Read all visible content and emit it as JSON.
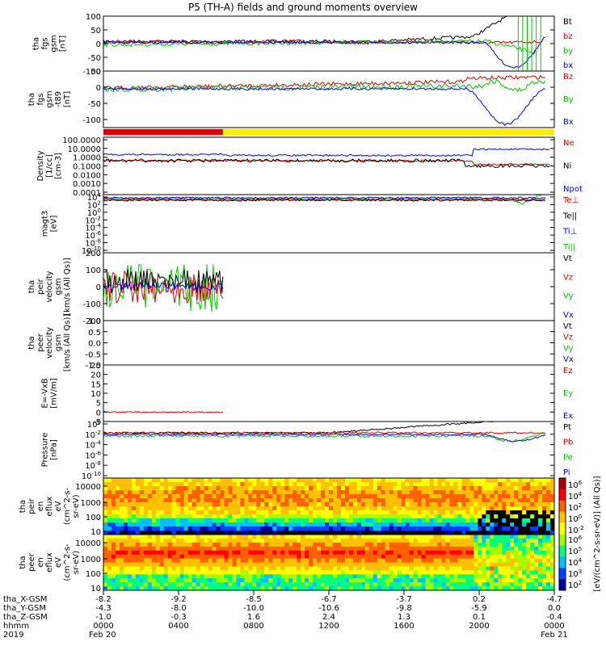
{
  "title": "P5 (TH-A) fields and ground moments overview",
  "colors": {
    "black": "#000000",
    "red": "#e00000",
    "green": "#00c800",
    "blue": "#0000ff",
    "yellow": "#ffee00",
    "bar_red": "#e00000"
  },
  "chart_data": [
    {
      "type": "line",
      "id": "fgs",
      "ylabel": [
        "tha",
        "fgs",
        "gsm",
        "[nT]"
      ],
      "ylim": [
        -100,
        100
      ],
      "yticks": [
        "100",
        "50",
        "0",
        "-50",
        "-100"
      ],
      "legend": [
        {
          "name": "Bt",
          "color": "black"
        },
        {
          "name": "bz",
          "color": "red"
        },
        {
          "name": "by",
          "color": "green"
        },
        {
          "name": "bx",
          "color": "blue"
        }
      ]
    },
    {
      "type": "line",
      "id": "fgs_t89",
      "ylabel": [
        "tha",
        "fgs",
        "gsm",
        "-t89",
        "[nT]"
      ],
      "ylim": [
        -125,
        50
      ],
      "yticks": [
        "50",
        "0",
        "-50",
        "-100"
      ],
      "legend": [
        {
          "name": "Bz",
          "color": "red"
        },
        {
          "name": "By",
          "color": "green"
        },
        {
          "name": "Bx",
          "color": "blue"
        }
      ]
    },
    {
      "type": "line",
      "id": "density",
      "ylabel": [
        "Density",
        "[1/cc]",
        "[cm-3]"
      ],
      "log": true,
      "ylim": [
        0.0001,
        100
      ],
      "yticks": [
        "100.0000",
        "10.0000",
        "1.0000",
        "0.1000",
        "0.0100",
        "0.0010",
        "0.0001"
      ],
      "legend": [
        {
          "name": "Ne",
          "color": "red"
        },
        {
          "name": "Ni",
          "color": "black"
        },
        {
          "name": "Npot",
          "color": "blue"
        }
      ]
    },
    {
      "type": "line",
      "id": "temp",
      "ylabel": [
        "magt3",
        "[eV]"
      ],
      "log": true,
      "yticks": [
        {
          "b": "10",
          "e": "4"
        },
        {
          "b": "10",
          "e": "2"
        },
        {
          "b": "10",
          "e": "0"
        },
        {
          "b": "10",
          "e": "-2"
        },
        {
          "b": "10",
          "e": "-4"
        },
        {
          "b": "10",
          "e": "-6"
        },
        {
          "b": "10",
          "e": "-8"
        },
        {
          "b": "10",
          "e": "-10"
        }
      ],
      "legend": [
        {
          "name": "Te⊥",
          "color": "red"
        },
        {
          "name": "Te||",
          "color": "black"
        },
        {
          "name": "Ti⊥",
          "color": "blue"
        },
        {
          "name": "Ti||",
          "color": "green"
        }
      ]
    },
    {
      "type": "line",
      "id": "peir_vel",
      "ylabel": [
        "tha",
        "peir",
        "velocity",
        "gsm",
        "[km/s (All Qs)]"
      ],
      "ylim": [
        -200,
        200
      ],
      "yticks": [
        "200",
        "100",
        "0",
        "-100",
        "-200"
      ],
      "legend": [
        {
          "name": "Vt",
          "color": "black"
        },
        {
          "name": "Vz",
          "color": "red"
        },
        {
          "name": "Vy",
          "color": "green"
        },
        {
          "name": "Vx",
          "color": "blue"
        }
      ]
    },
    {
      "type": "line",
      "id": "peer_vel",
      "ylabel": [
        "tha",
        "peer",
        "velocity",
        "gsm",
        "[km/s (All Qs)]"
      ],
      "ylim": [
        -1.0,
        1.0
      ],
      "yticks": [
        "1.0",
        "0.5",
        "0.0",
        "-0.5",
        "-1.0"
      ],
      "legend": [
        {
          "name": "Vt",
          "color": "black"
        },
        {
          "name": "Vz",
          "color": "red"
        },
        {
          "name": "Vy",
          "color": "green"
        },
        {
          "name": "Vx",
          "color": "blue"
        }
      ]
    },
    {
      "type": "line",
      "id": "efield",
      "ylabel": [
        "E=-VxB",
        "[mV/m]"
      ],
      "ylim": [
        -5,
        25
      ],
      "yticks": [
        "25",
        "20",
        "15",
        "10",
        "5",
        "0",
        "-5"
      ],
      "legend": [
        {
          "name": "Ez",
          "color": "red"
        },
        {
          "name": "Ey",
          "color": "green"
        },
        {
          "name": "Ex",
          "color": "blue"
        }
      ]
    },
    {
      "type": "line",
      "id": "pressure",
      "ylabel": [
        "Pressure",
        "[nPa]"
      ],
      "log": true,
      "yticks": [
        {
          "b": "10",
          "e": "0"
        },
        {
          "b": "10",
          "e": "-2"
        },
        {
          "b": "10",
          "e": "-4"
        },
        {
          "b": "10",
          "e": "-6"
        },
        {
          "b": "10",
          "e": "-8"
        },
        {
          "b": "10",
          "e": "-10"
        }
      ],
      "legend": [
        {
          "name": "Pt",
          "color": "black"
        },
        {
          "name": "Pb",
          "color": "red"
        },
        {
          "name": "Pe",
          "color": "green"
        },
        {
          "name": "Pi",
          "color": "blue"
        }
      ]
    },
    {
      "type": "heatmap",
      "id": "peir_en",
      "ylabel": [
        "tha",
        "peir",
        "en",
        "eflux",
        "eV",
        "(cm^2-s-",
        "sr-eV)"
      ],
      "log": true,
      "ylim": [
        5,
        20000
      ],
      "yticks": [
        "10000",
        "1000",
        "100",
        "10"
      ]
    },
    {
      "type": "heatmap",
      "id": "peer_en",
      "ylabel": [
        "tha",
        "peer",
        "en",
        "eflux",
        "eV",
        "(cm^2-s-",
        "sr-eV)"
      ],
      "log": true,
      "ylim": [
        5,
        20000
      ],
      "yticks": [
        "10000",
        "1000",
        "100",
        "10"
      ]
    }
  ],
  "colorbar": {
    "label": "[eV/(cm^2-s-sr-eV)] (All Qs)]",
    "ticks_top": [
      {
        "b": "10",
        "e": "6"
      },
      {
        "b": "10",
        "e": "4"
      },
      {
        "b": "10",
        "e": "2"
      },
      {
        "b": "10",
        "e": "0"
      },
      {
        "b": "10",
        "e": "-2"
      }
    ],
    "ticks_bottom": [
      {
        "b": "10",
        "e": "6"
      },
      {
        "b": "10",
        "e": "5"
      },
      {
        "b": "10",
        "e": "4"
      },
      {
        "b": "10",
        "e": "3"
      },
      {
        "b": "10",
        "e": "2"
      }
    ]
  },
  "x_axis": {
    "rows": [
      {
        "label": "tha_X-GSM",
        "values": [
          "-8.2",
          "-9.2",
          "-8.5",
          "-6.7",
          "-3.7",
          "0.2",
          "-4.7"
        ]
      },
      {
        "label": "tha_Y-GSM",
        "values": [
          "-4.3",
          "-8.0",
          "-10.0",
          "-10.6",
          "-9.8",
          "-5.9",
          "0.0"
        ]
      },
      {
        "label": "tha_Z-GSM",
        "values": [
          "-1.0",
          "-0.3",
          "1.6",
          "2.4",
          "1.3",
          "0.1",
          "-0.4"
        ]
      },
      {
        "label": "hhmm",
        "values": [
          "0000",
          "0400",
          "0800",
          "1200",
          "1600",
          "2000",
          "0000"
        ]
      },
      {
        "label": "2019",
        "values": [
          "Feb 20",
          "",
          "",
          "",
          "",
          "",
          "Feb 21"
        ]
      }
    ]
  }
}
